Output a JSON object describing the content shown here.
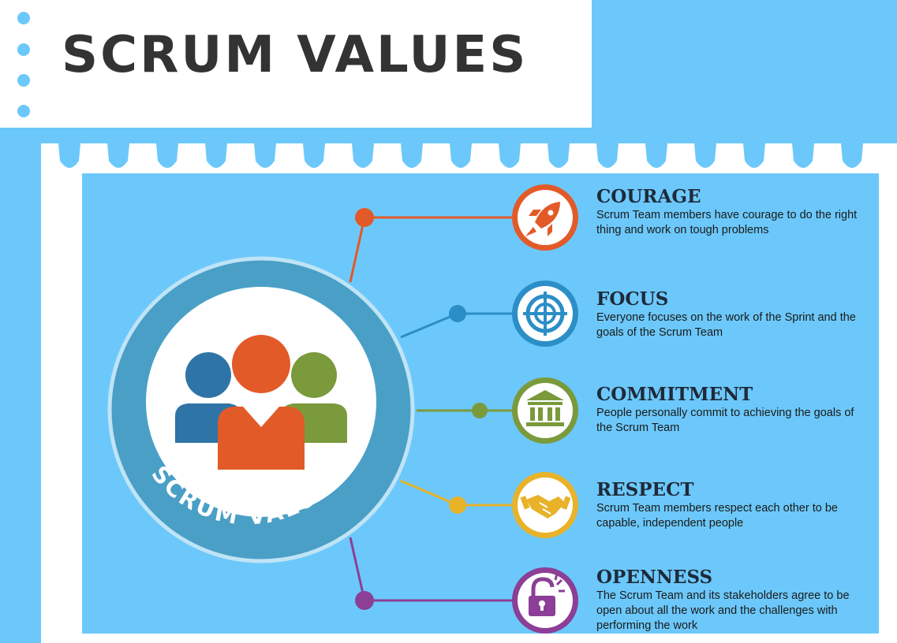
{
  "title": "SCRUM VALUES",
  "center": {
    "label": "SCRUM VALUES",
    "icon": "people-group-icon"
  },
  "values": [
    {
      "name": "COURAGE",
      "description": "Scrum Team members have courage to do the right thing and work on tough problems",
      "icon": "rocket-icon",
      "color": "#e25a28"
    },
    {
      "name": "FOCUS",
      "description": "Everyone focuses on the work of the Sprint and the goals of the Scrum Team",
      "icon": "target-icon",
      "color": "#2b8ec7"
    },
    {
      "name": "COMMITMENT",
      "description": "People personally commit to achieving the goals of the Scrum Team",
      "icon": "building-icon",
      "color": "#7a9a3b"
    },
    {
      "name": "RESPECT",
      "description": "Scrum Team members respect each other to be capable, independent people",
      "icon": "handshake-icon",
      "color": "#e8b229"
    },
    {
      "name": "OPENNESS",
      "description": "The Scrum Team and its stakeholders agree to be open about all the work and the challenges with performing the work",
      "icon": "open-lock-icon",
      "color": "#8b3f96"
    }
  ],
  "colors": {
    "background": "#6cc8fa",
    "ring": "#4a9fc6",
    "title_text": "#333333"
  }
}
